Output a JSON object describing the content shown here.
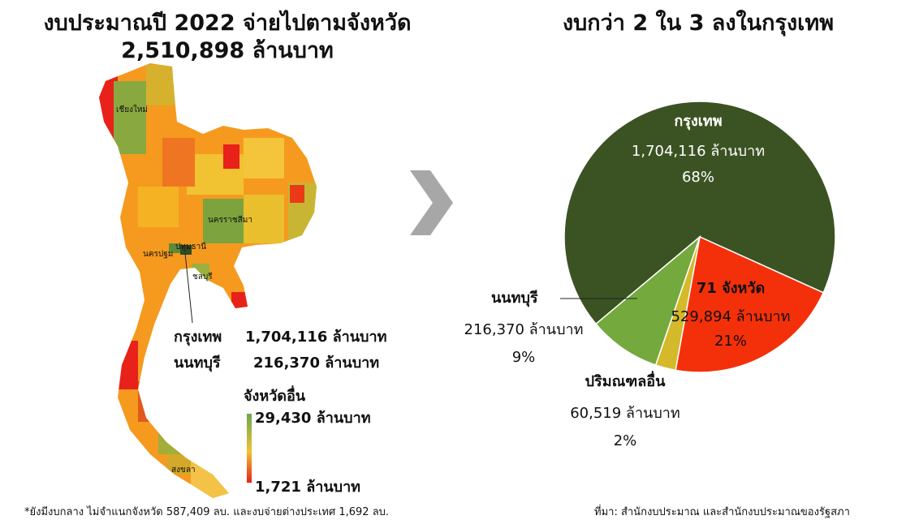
{
  "left": {
    "title_line1": "งบประมาณปี 2022 จ่ายไปตามจังหวัด",
    "title_line2": "2,510,898 ล้านบาท",
    "map_labels": [
      "เชียงใหม่",
      "นครราชสีมา",
      "นครปฐม",
      "ปทุมธานี",
      "ชลบุรี",
      "สงขลา"
    ],
    "callouts": [
      {
        "name": "กรุงเทพ",
        "value": "1,704,116 ล้านบาท"
      },
      {
        "name": "นนทบุรี",
        "value": "216,370 ล้านบาท"
      }
    ],
    "legend": {
      "title": "จังหวัดอื่น",
      "max_label": "29,430 ล้านบาท",
      "min_label": "1,721 ล้านบาท",
      "colors": {
        "max": "#6aa84f",
        "mid": "#f1c232",
        "min": "#e8211b"
      }
    }
  },
  "arrow_icon": "chevron-right-icon",
  "chart_data": {
    "type": "pie",
    "title": "งบกว่า 2 ใน 3 ลงในกรุงเทพ",
    "slices": [
      {
        "name": "กรุงเทพ",
        "amount": "1,704,116 ล้านบาท",
        "value": 1704116,
        "percent": "68%",
        "color": "#3b5323"
      },
      {
        "name": "71 จังหวัด",
        "amount": "529,894 ล้านบาท",
        "value": 529894,
        "percent": "21%",
        "color": "#f4300a"
      },
      {
        "name": "ปริมณฑลอื่น",
        "amount": "60,519 ล้านบาท",
        "value": 60519,
        "percent": "2%",
        "color": "#d4b92a"
      },
      {
        "name": "นนทบุรี",
        "amount": "216,370 ล้านบาท",
        "value": 216370,
        "percent": "9%",
        "color": "#74a93d"
      }
    ]
  },
  "footer": {
    "note": "*ยังมีงบกลาง ไม่จำแนกจังหวัด 587,409 ลบ. และงบจ่ายต่างประเทศ 1,692 ลบ.",
    "source": "ที่มา: สำนักงบประมาณ และสำนักงบประมาณของรัฐสภา"
  }
}
